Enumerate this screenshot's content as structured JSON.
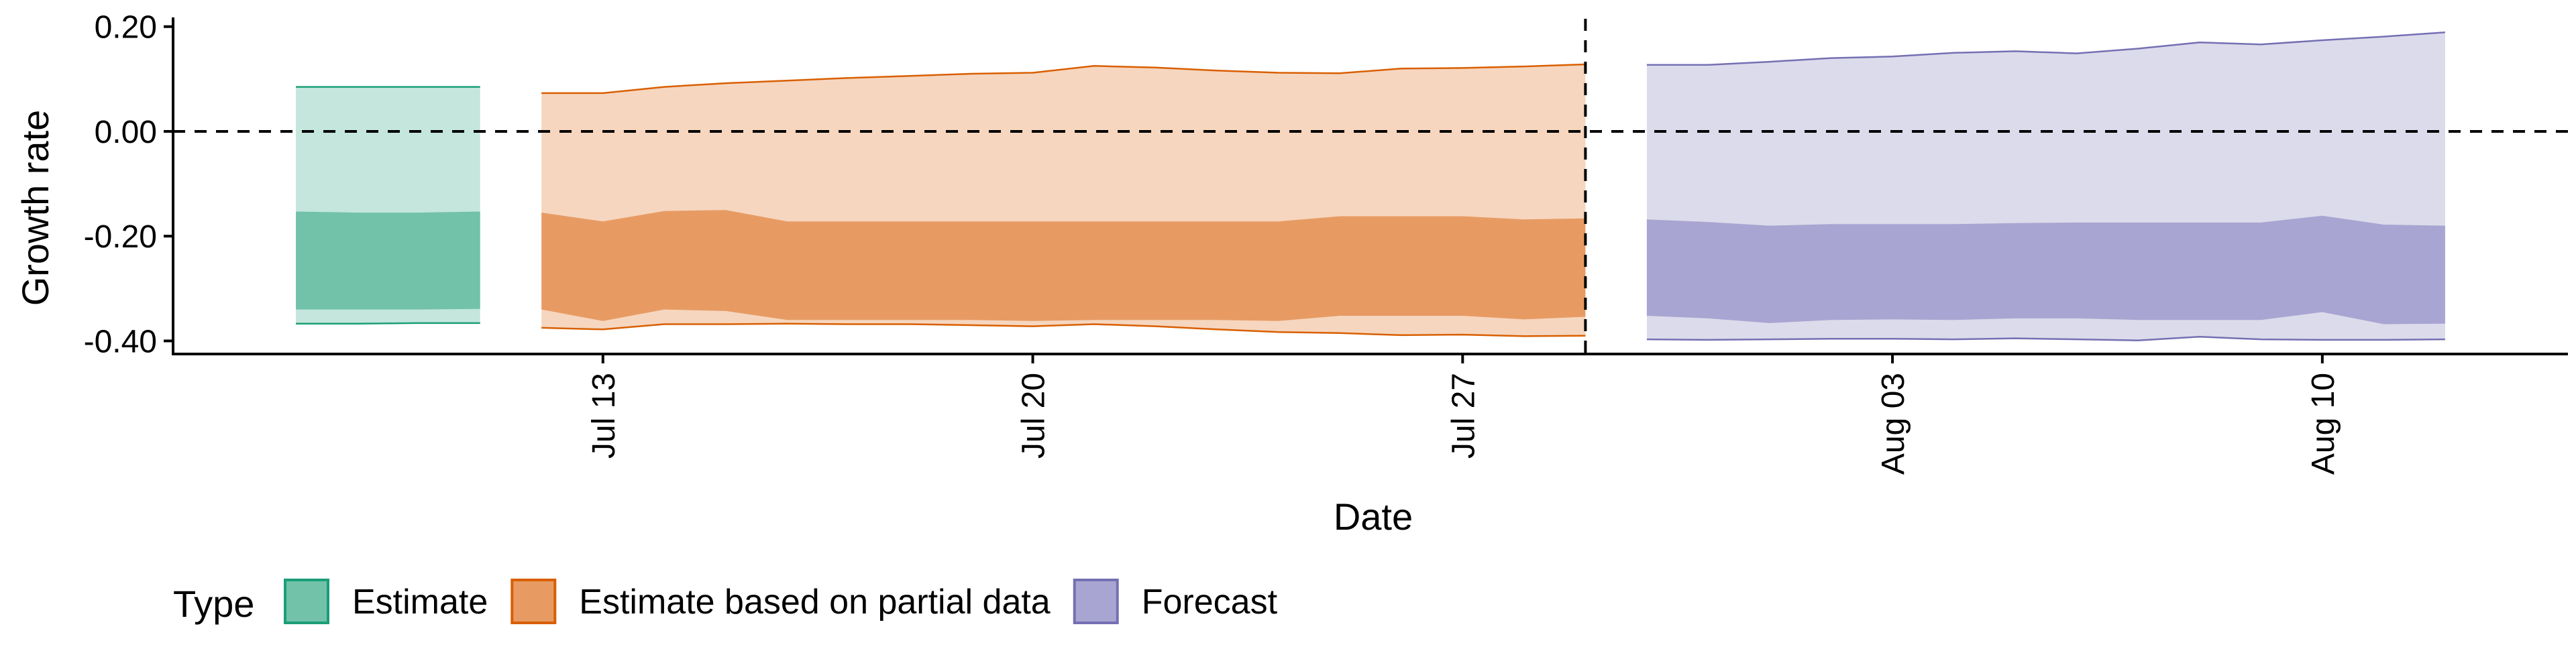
{
  "chart_data": {
    "type": "area",
    "title": "",
    "xlabel": "Date",
    "ylabel": "Growth rate",
    "x_ticks": [
      "Jul 13",
      "Jul 20",
      "Jul 27",
      "Aug 03",
      "Aug 10"
    ],
    "y_ticks": [
      "0.20",
      "0.00",
      "-0.20",
      "-0.40"
    ],
    "ylim": [
      -0.425,
      0.215
    ],
    "xlim": [
      "2020-07-06",
      "2020-08-14"
    ],
    "reference_lines": {
      "horizontal_y": 0.0,
      "vertical_x": "2020-07-29",
      "style": "dashed"
    },
    "legend": {
      "title": "Type",
      "position": "bottom-left",
      "entries": [
        "Estimate",
        "Estimate based on partial data",
        "Forecast"
      ]
    },
    "grid": false,
    "colors": {
      "Estimate": {
        "line": "#1b9e77",
        "inner": "#72c2a9",
        "outer": "#c4e6dc"
      },
      "Estimate based on partial data": {
        "line": "#d95f02",
        "inner": "#e79b63",
        "outer": "#f6d6bf"
      },
      "Forecast": {
        "line": "#7570b3",
        "inner": "#a9a5d2",
        "outer": "#dcdbeb"
      }
    },
    "series": [
      {
        "name": "Estimate",
        "x": [
          "2020-07-08",
          "2020-07-09",
          "2020-07-10",
          "2020-07-11"
        ],
        "outer_upper": [
          0.085,
          0.085,
          0.085,
          0.085
        ],
        "inner_upper": [
          -0.153,
          -0.155,
          -0.155,
          -0.153
        ],
        "inner_lower": [
          -0.34,
          -0.34,
          -0.34,
          -0.339
        ],
        "outer_lower": [
          -0.367,
          -0.367,
          -0.366,
          -0.366
        ]
      },
      {
        "name": "Estimate based on partial data",
        "x": [
          "2020-07-12",
          "2020-07-13",
          "2020-07-14",
          "2020-07-15",
          "2020-07-16",
          "2020-07-17",
          "2020-07-18",
          "2020-07-19",
          "2020-07-20",
          "2020-07-21",
          "2020-07-22",
          "2020-07-23",
          "2020-07-24",
          "2020-07-25",
          "2020-07-26",
          "2020-07-27",
          "2020-07-28",
          "2020-07-29"
        ],
        "outer_upper": [
          0.073,
          0.073,
          0.085,
          0.092,
          0.097,
          0.102,
          0.106,
          0.11,
          0.112,
          0.125,
          0.122,
          0.116,
          0.112,
          0.111,
          0.12,
          0.121,
          0.124,
          0.128
        ],
        "inner_upper": [
          -0.155,
          -0.172,
          -0.152,
          -0.15,
          -0.172,
          -0.172,
          -0.172,
          -0.172,
          -0.172,
          -0.172,
          -0.172,
          -0.172,
          -0.172,
          -0.162,
          -0.162,
          -0.162,
          -0.168,
          -0.166
        ],
        "inner_lower": [
          -0.34,
          -0.362,
          -0.34,
          -0.343,
          -0.36,
          -0.36,
          -0.36,
          -0.36,
          -0.362,
          -0.36,
          -0.36,
          -0.36,
          -0.362,
          -0.352,
          -0.352,
          -0.352,
          -0.359,
          -0.354
        ],
        "outer_lower": [
          -0.375,
          -0.378,
          -0.368,
          -0.368,
          -0.367,
          -0.368,
          -0.368,
          -0.37,
          -0.372,
          -0.368,
          -0.372,
          -0.378,
          -0.383,
          -0.385,
          -0.389,
          -0.388,
          -0.391,
          -0.39
        ]
      },
      {
        "name": "Forecast",
        "x": [
          "2020-07-30",
          "2020-07-31",
          "2020-08-01",
          "2020-08-02",
          "2020-08-03",
          "2020-08-04",
          "2020-08-05",
          "2020-08-06",
          "2020-08-07",
          "2020-08-08",
          "2020-08-09",
          "2020-08-10",
          "2020-08-11",
          "2020-08-12"
        ],
        "outer_upper": [
          0.127,
          0.127,
          0.133,
          0.14,
          0.143,
          0.15,
          0.153,
          0.149,
          0.158,
          0.17,
          0.166,
          0.174,
          0.181,
          0.189
        ],
        "inner_upper": [
          -0.168,
          -0.173,
          -0.18,
          -0.177,
          -0.177,
          -0.177,
          -0.175,
          -0.174,
          -0.174,
          -0.174,
          -0.174,
          -0.161,
          -0.178,
          -0.18
        ],
        "inner_lower": [
          -0.352,
          -0.357,
          -0.366,
          -0.36,
          -0.359,
          -0.36,
          -0.357,
          -0.357,
          -0.36,
          -0.36,
          -0.36,
          -0.345,
          -0.368,
          -0.367
        ],
        "outer_lower": [
          -0.397,
          -0.398,
          -0.397,
          -0.396,
          -0.396,
          -0.397,
          -0.395,
          -0.397,
          -0.399,
          -0.392,
          -0.397,
          -0.398,
          -0.398,
          -0.397
        ]
      }
    ]
  }
}
